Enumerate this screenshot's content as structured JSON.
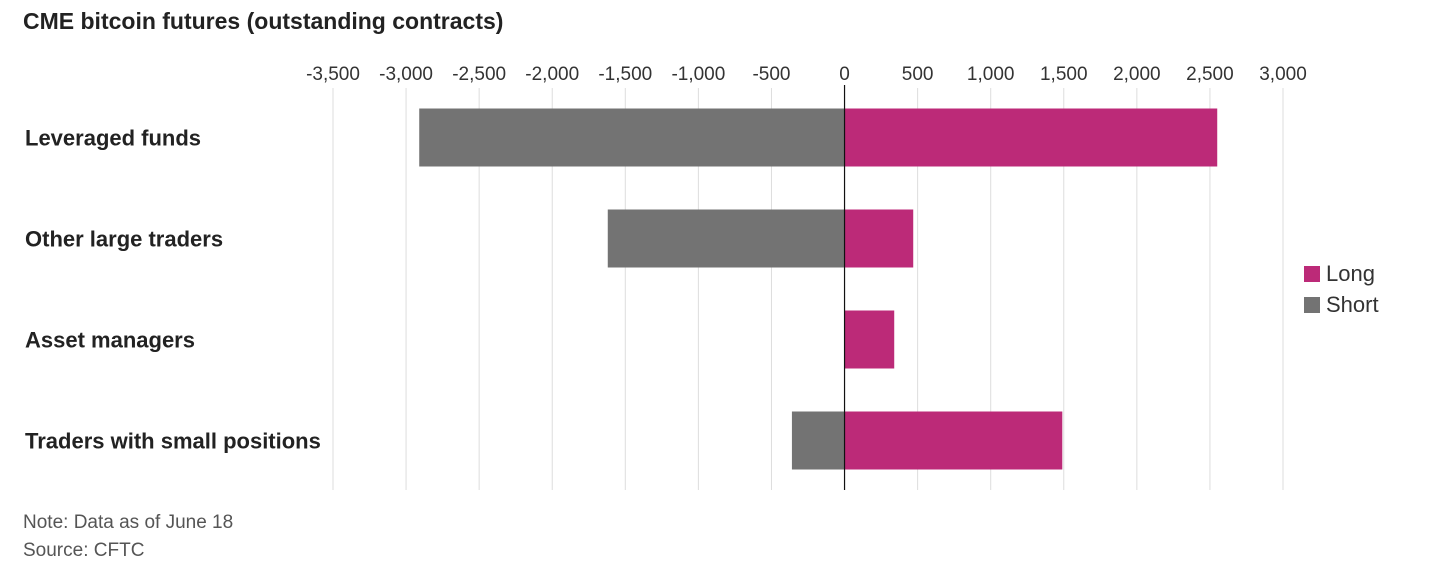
{
  "title": "CME bitcoin futures (outstanding contracts)",
  "notes": {
    "note": "Note: Data as of June 18",
    "source": "Source: CFTC"
  },
  "colors": {
    "long": "#bc2a78",
    "short": "#737373",
    "grid": "#dddddd",
    "zero_line": "#111111"
  },
  "chart_data": {
    "type": "bar",
    "orientation": "horizontal",
    "stacked": "diverging",
    "title": "CME bitcoin futures (outstanding contracts)",
    "categories": [
      "Leveraged funds",
      "Other large traders",
      "Asset managers",
      "Traders with small positions"
    ],
    "series": [
      {
        "name": "Long",
        "values": [
          2550,
          470,
          340,
          1490
        ]
      },
      {
        "name": "Short",
        "values": [
          -2910,
          -1620,
          0,
          -360
        ]
      }
    ],
    "xlim": [
      -3500,
      3000
    ],
    "x_ticks": [
      -3500,
      -3000,
      -2500,
      -2000,
      -1500,
      -1000,
      -500,
      0,
      500,
      1000,
      1500,
      2000,
      2500,
      3000
    ],
    "x_tick_labels": [
      "-3,500",
      "-3,000",
      "-2,500",
      "-2,000",
      "-1,500",
      "-1,000",
      "-500",
      "0",
      "500",
      "1,000",
      "1,500",
      "2,000",
      "2,500",
      "3,000"
    ],
    "grid": true,
    "legend_position": "right"
  }
}
